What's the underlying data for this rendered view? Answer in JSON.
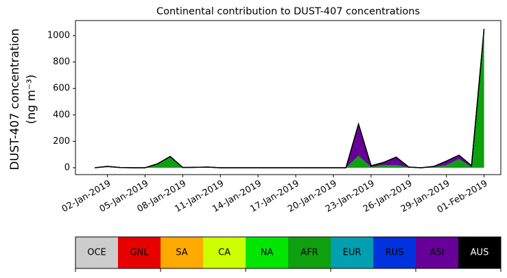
{
  "chart_data": {
    "type": "stacked_area",
    "title": "Continental contribution to DUST-407 concentrations",
    "ylabel": [
      "DUST-407 concentration",
      "(ng m⁻³)"
    ],
    "x": [
      "2019-01-01",
      "2019-01-02",
      "2019-01-03",
      "2019-01-04",
      "2019-01-05",
      "2019-01-06",
      "2019-01-07",
      "2019-01-08",
      "2019-01-09",
      "2019-01-10",
      "2019-01-11",
      "2019-01-12",
      "2019-01-13",
      "2019-01-14",
      "2019-01-15",
      "2019-01-16",
      "2019-01-17",
      "2019-01-18",
      "2019-01-19",
      "2019-01-20",
      "2019-01-21",
      "2019-01-22",
      "2019-01-23",
      "2019-01-24",
      "2019-01-25",
      "2019-01-26",
      "2019-01-27",
      "2019-01-28",
      "2019-01-29",
      "2019-01-30",
      "2019-01-31",
      "2019-02-01"
    ],
    "xlim": [
      "2018-12-30T11:00:00Z",
      "2019-02-02T08:00:00Z"
    ],
    "xticks": [
      {
        "value": "2019-01-02",
        "label": "02-Jan-2019"
      },
      {
        "value": "2019-01-05",
        "label": "05-Jan-2019"
      },
      {
        "value": "2019-01-08",
        "label": "08-Jan-2019"
      },
      {
        "value": "2019-01-11",
        "label": "11-Jan-2019"
      },
      {
        "value": "2019-01-14",
        "label": "14-Jan-2019"
      },
      {
        "value": "2019-01-17",
        "label": "17-Jan-2019"
      },
      {
        "value": "2019-01-20",
        "label": "20-Jan-2019"
      },
      {
        "value": "2019-01-23",
        "label": "23-Jan-2019"
      },
      {
        "value": "2019-01-26",
        "label": "26-Jan-2019"
      },
      {
        "value": "2019-01-29",
        "label": "29-Jan-2019"
      },
      {
        "value": "2019-02-01",
        "label": "01-Feb-2019"
      }
    ],
    "ylim": [
      -52,
      1114
    ],
    "yticks": [
      0,
      200,
      400,
      600,
      800,
      1000
    ],
    "grid": false,
    "series": [
      {
        "name": "OCE",
        "color": "#cccccc",
        "values": [
          0,
          0,
          0,
          0,
          0,
          0,
          0,
          0,
          0,
          0,
          0,
          0,
          0,
          0,
          0,
          0,
          0,
          0,
          0,
          0,
          0,
          0,
          0,
          0,
          0,
          0,
          0,
          0,
          0,
          0,
          0,
          0
        ]
      },
      {
        "name": "GNL",
        "color": "#e60000",
        "values": [
          0,
          0,
          0,
          0,
          0,
          0,
          0,
          0,
          0,
          0,
          0,
          0,
          0,
          0,
          0,
          0,
          0,
          0,
          0,
          0,
          0,
          0,
          0,
          0,
          0,
          0,
          0,
          0,
          0,
          0,
          0,
          0
        ]
      },
      {
        "name": "SA",
        "color": "#ffaa00",
        "values": [
          0,
          0,
          0,
          0,
          0,
          0,
          0,
          0,
          0,
          0,
          0,
          0,
          0,
          0,
          0,
          0,
          0,
          0,
          0,
          0,
          0,
          0,
          0,
          0,
          0,
          0,
          0,
          0,
          0,
          0,
          0,
          0
        ]
      },
      {
        "name": "CA",
        "color": "#ccff00",
        "values": [
          0,
          8,
          2,
          0,
          0,
          0,
          0,
          0,
          0,
          2,
          0,
          0,
          0,
          0,
          0,
          0,
          0,
          0,
          0,
          0,
          0,
          0,
          0,
          0,
          0,
          0,
          0,
          0,
          0,
          0,
          0,
          0
        ]
      },
      {
        "name": "NA",
        "color": "#00e600",
        "values": [
          0,
          2,
          0,
          0,
          0,
          0,
          0,
          0,
          0,
          1,
          0,
          0,
          0,
          0,
          0,
          0,
          0,
          0,
          0,
          0,
          0,
          0,
          0,
          0,
          0,
          0,
          0,
          0,
          0,
          0,
          0,
          0
        ]
      },
      {
        "name": "AFR",
        "color": "#0fa00f",
        "values": [
          0,
          0,
          0,
          0,
          0,
          30,
          85,
          2,
          3,
          2,
          0,
          0,
          0,
          0,
          0,
          0,
          0,
          0,
          0,
          0,
          0,
          90,
          5,
          20,
          20,
          3,
          0,
          5,
          20,
          65,
          5,
          1040
        ]
      },
      {
        "name": "EUR",
        "color": "#00a0b0",
        "values": [
          0,
          0,
          0,
          0,
          0,
          0,
          0,
          0,
          0,
          0,
          0,
          0,
          0,
          0,
          0,
          0,
          0,
          0,
          0,
          0,
          0,
          0,
          0,
          0,
          0,
          0,
          0,
          0,
          0,
          0,
          0,
          0
        ]
      },
      {
        "name": "RUS",
        "color": "#0033dd",
        "values": [
          0,
          0,
          0,
          0,
          0,
          0,
          0,
          0,
          0,
          0,
          0,
          0,
          0,
          0,
          0,
          0,
          0,
          0,
          0,
          0,
          0,
          0,
          0,
          0,
          0,
          0,
          0,
          0,
          0,
          0,
          0,
          0
        ]
      },
      {
        "name": "ASI",
        "color": "#660099",
        "values": [
          0,
          0,
          0,
          0,
          0,
          0,
          0,
          0,
          0,
          0,
          0,
          0,
          0,
          0,
          0,
          0,
          0,
          0,
          0,
          0,
          0,
          240,
          10,
          20,
          60,
          2,
          0,
          5,
          30,
          30,
          10,
          10
        ]
      },
      {
        "name": "AUS",
        "color": "#000000",
        "values": [
          0,
          0,
          0,
          0,
          0,
          0,
          0,
          0,
          0,
          0,
          0,
          0,
          0,
          0,
          0,
          0,
          0,
          0,
          0,
          0,
          0,
          0,
          0,
          0,
          0,
          0,
          0,
          0,
          0,
          0,
          0,
          0
        ]
      }
    ]
  }
}
